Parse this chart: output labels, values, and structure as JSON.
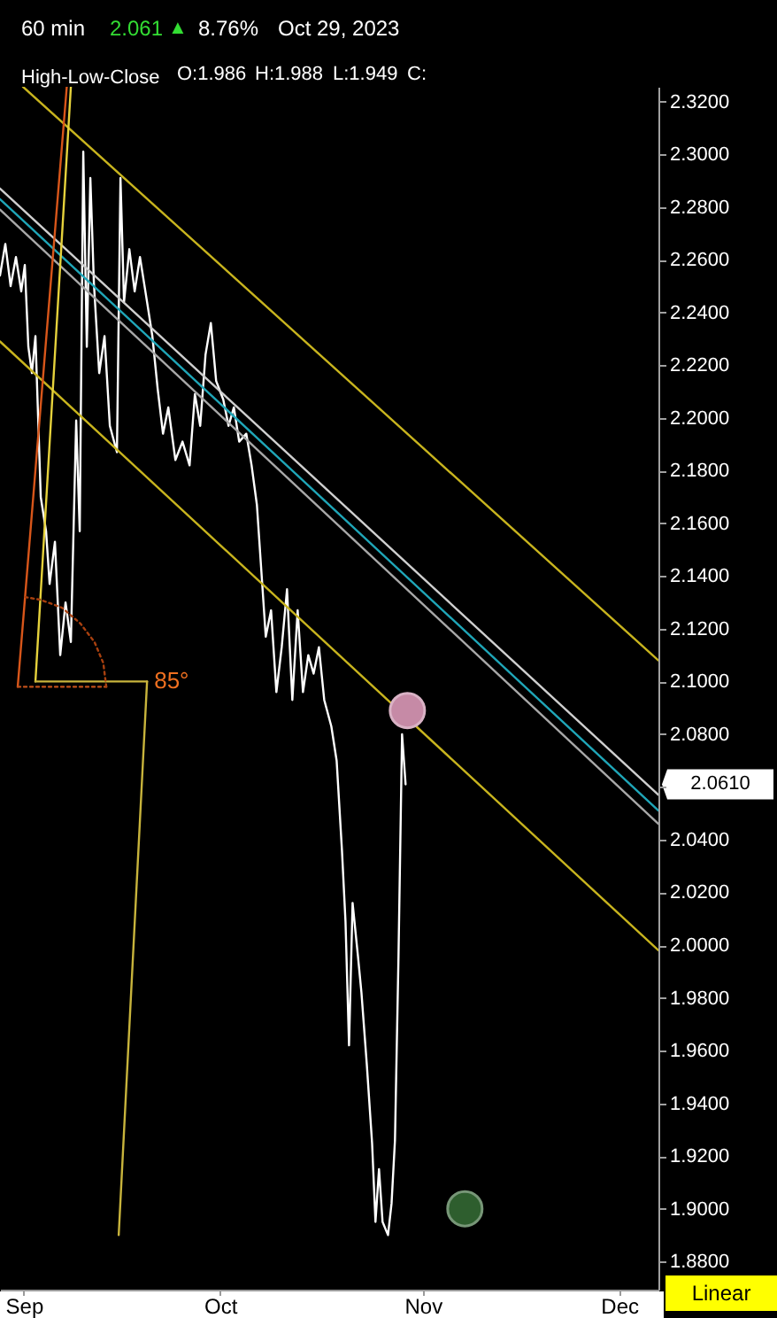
{
  "chart_data": {
    "type": "line",
    "title": "60 min",
    "subtitle": "High-Low-Close",
    "annotations": [
      "2.061",
      "▲",
      "8.76%",
      "Oct 29, 2023",
      "O:1.986",
      "H:1.988",
      "L:1.949",
      "C:",
      {
        "text": "85°",
        "x": "2023-09-19T20:00",
        "y": 2.1
      },
      "2.0610",
      "Linear"
    ],
    "xlim": [
      "2023-08-28T08:30",
      "2023-12-07T00:00"
    ],
    "xticks": [
      {
        "value": "2023-09-01",
        "label": "Sep"
      },
      {
        "value": "2023-10-01",
        "label": "Oct"
      },
      {
        "value": "2023-11-01",
        "label": "Nov"
      },
      {
        "value": "2023-12-01",
        "label": "Dec"
      }
    ],
    "ylim": [
      1.8693,
      2.3256
    ],
    "yticks": [
      {
        "value": 1.88,
        "label": "1.8800"
      },
      {
        "value": 1.9,
        "label": "1.9000"
      },
      {
        "value": 1.92,
        "label": "1.9200"
      },
      {
        "value": 1.94,
        "label": "1.9400"
      },
      {
        "value": 1.96,
        "label": "1.9600"
      },
      {
        "value": 1.98,
        "label": "1.9800"
      },
      {
        "value": 2.0,
        "label": "2.0000"
      },
      {
        "value": 2.02,
        "label": "2.0200"
      },
      {
        "value": 2.04,
        "label": "2.0400"
      },
      {
        "value": 2.06,
        "label": null
      },
      {
        "value": 2.08,
        "label": "2.0800"
      },
      {
        "value": 2.1,
        "label": "2.1000"
      },
      {
        "value": 2.12,
        "label": "2.1200"
      },
      {
        "value": 2.14,
        "label": "2.1400"
      },
      {
        "value": 2.16,
        "label": "2.1600"
      },
      {
        "value": 2.18,
        "label": "2.1800"
      },
      {
        "value": 2.2,
        "label": "2.2000"
      },
      {
        "value": 2.22,
        "label": "2.2200"
      },
      {
        "value": 2.24,
        "label": "2.2400"
      },
      {
        "value": 2.26,
        "label": "2.2600"
      },
      {
        "value": 2.28,
        "label": "2.2800"
      },
      {
        "value": 2.3,
        "label": "2.3000"
      },
      {
        "value": 2.32,
        "label": "2.3200"
      }
    ],
    "grid": false,
    "series": [
      {
        "color": "#ffffff",
        "x": [
          "2023-08-28T08:30",
          "2023-08-29T04:00",
          "2023-08-29T23:30",
          "2023-08-30T19:00",
          "2023-08-31T14:30",
          "2023-09-01T03:30",
          "2023-09-01T16:30",
          "2023-09-02T05:30",
          "2023-09-02T18:30",
          "2023-09-03T14:00",
          "2023-09-04T09:30",
          "2023-09-04T22:30",
          "2023-09-05T18:00",
          "2023-09-06T13:30",
          "2023-09-07T09:00",
          "2023-09-08T04:30",
          "2023-09-09T00:00",
          "2023-09-09T13:00",
          "2023-09-10T02:00",
          "2023-09-10T15:00",
          "2023-09-11T04:00",
          "2023-09-11T17:00",
          "2023-09-12T12:30",
          "2023-09-13T08:00",
          "2023-09-14T03:30",
          "2023-09-15T05:30",
          "2023-09-15T18:30",
          "2023-09-16T07:30",
          "2023-09-17T03:00",
          "2023-09-17T22:30",
          "2023-09-18T18:00",
          "2023-09-19T20:00",
          "2023-09-20T15:30",
          "2023-09-21T11:00",
          "2023-09-22T06:30",
          "2023-09-23T02:00",
          "2023-09-24T04:00",
          "2023-09-25T06:00",
          "2023-09-26T08:00",
          "2023-09-27T03:30",
          "2023-09-27T23:00",
          "2023-09-28T18:30",
          "2023-09-29T14:00",
          "2023-09-30T09:30",
          "2023-10-01T11:30",
          "2023-10-02T07:00",
          "2023-10-03T02:30",
          "2023-10-03T22:00",
          "2023-10-05T00:00",
          "2023-10-05T19:30",
          "2023-10-06T15:00",
          "2023-10-07T10:30",
          "2023-10-07T23:30",
          "2023-10-08T19:00",
          "2023-10-09T14:30",
          "2023-10-10T10:00",
          "2023-10-11T05:30",
          "2023-10-12T01:00",
          "2023-10-12T20:30",
          "2023-10-13T16:00",
          "2023-10-14T11:30",
          "2023-10-15T07:00",
          "2023-10-16T02:30",
          "2023-10-16T22:00",
          "2023-10-18T00:00",
          "2023-10-18T19:30",
          "2023-10-19T15:00",
          "2023-10-20T04:00",
          "2023-10-20T17:00",
          "2023-10-21T06:00",
          "2023-10-22T01:30",
          "2023-10-22T14:30",
          "2023-10-23T10:00",
          "2023-10-24T05:30",
          "2023-10-24T18:00",
          "2023-10-25T07:00",
          "2023-10-25T20:00",
          "2023-10-26T16:00",
          "2023-10-27T05:00",
          "2023-10-27T17:30",
          "2023-10-28T06:30",
          "2023-10-28T19:30",
          "2023-10-29T08:30"
        ],
        "values": [
          2.254,
          2.266,
          2.25,
          2.261,
          2.248,
          2.258,
          2.227,
          2.217,
          2.231,
          2.17,
          2.157,
          2.137,
          2.153,
          2.11,
          2.13,
          2.115,
          2.199,
          2.157,
          2.301,
          2.227,
          2.291,
          2.251,
          2.217,
          2.231,
          2.197,
          2.187,
          2.291,
          2.244,
          2.264,
          2.248,
          2.261,
          2.244,
          2.231,
          2.211,
          2.194,
          2.204,
          2.184,
          2.191,
          2.182,
          2.209,
          2.197,
          2.224,
          2.236,
          2.214,
          2.207,
          2.197,
          2.204,
          2.191,
          2.194,
          2.182,
          2.167,
          2.137,
          2.117,
          2.127,
          2.096,
          2.113,
          2.135,
          2.093,
          2.127,
          2.096,
          2.11,
          2.103,
          2.113,
          2.093,
          2.083,
          2.07,
          2.036,
          2.009,
          1.962,
          2.016,
          1.996,
          1.982,
          1.955,
          1.925,
          1.895,
          1.915,
          1.895,
          1.89,
          1.902,
          1.926,
          1.996,
          2.08,
          2.061
        ]
      },
      {
        "color": "#cfcfcf",
        "x": [
          "2023-08-28T08:30",
          "2023-12-07T00:00"
        ],
        "values": [
          2.287,
          2.057
        ]
      },
      {
        "color": "#1fa6b8",
        "x": [
          "2023-08-28T08:30",
          "2023-12-07T00:00"
        ],
        "values": [
          2.283,
          2.051
        ]
      },
      {
        "color": "#a8a8a8",
        "x": [
          "2023-08-28T08:30",
          "2023-12-07T00:00"
        ],
        "values": [
          2.279,
          2.046
        ]
      },
      {
        "color": "#c8b41e",
        "x": [
          "2023-08-31T21:00",
          "2023-12-07T00:00"
        ],
        "values": [
          2.3256,
          2.108
        ]
      },
      {
        "color": "#c8b41e",
        "x": [
          "2023-08-28T08:30",
          "2023-12-07T00:00"
        ],
        "values": [
          2.229,
          1.998
        ]
      },
      {
        "color": "#d8561a",
        "x": [
          "2023-08-31T01:30",
          "2023-09-07T13:30"
        ],
        "values": [
          2.098,
          2.3256
        ]
      },
      {
        "color": "#e6d23c",
        "x": [
          "2023-09-02T18:30",
          "2023-09-08T04:30"
        ],
        "values": [
          2.1,
          2.3256
        ]
      },
      {
        "color": "#c8b43c",
        "x": [
          "2023-09-02T18:30",
          "2023-09-19T20:00"
        ],
        "values": [
          2.1,
          2.1
        ]
      },
      {
        "color": "#c8b43c",
        "x": [
          "2023-09-19T20:00",
          "2023-09-15T12:00"
        ],
        "values": [
          2.1,
          1.89
        ]
      },
      {
        "color": "#c0501a",
        "line_style": "dotted",
        "x": [
          "2023-08-31T01:30",
          "2023-09-13T14:30"
        ],
        "values": [
          2.098,
          2.098
        ]
      },
      {
        "color": "#a8400f",
        "line_style": "dotted",
        "x": [
          "2023-09-13T14:30",
          "2023-09-13T03:30",
          "2023-09-11T19:00",
          "2023-09-09T15:30",
          "2023-09-06T20:00",
          "2023-09-03T13:30",
          "2023-09-01T06:00"
        ],
        "values": [
          2.098,
          2.107,
          2.115,
          2.122,
          2.128,
          2.131,
          2.132
        ]
      },
      {
        "type": "scatter",
        "marker": "circle",
        "color": "#c68aa6",
        "x": [
          "2023-10-29T15:00"
        ],
        "values": [
          2.089
        ]
      },
      {
        "type": "scatter",
        "marker": "circle",
        "color": "#2e5e2e",
        "x": [
          "2023-11-07T10:00"
        ],
        "values": [
          1.9
        ]
      }
    ]
  }
}
